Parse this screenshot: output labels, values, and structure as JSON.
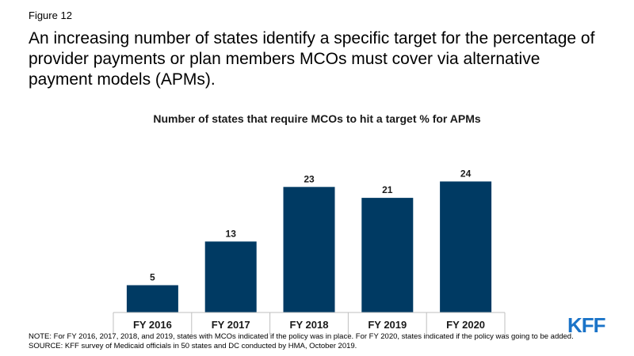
{
  "figure_label": "Figure 12",
  "headline": "An increasing number of states identify a specific target for the percentage of provider payments or plan members MCOs must cover via alternative payment models (APMs).",
  "chart_data": {
    "type": "bar",
    "title": "Number of states that require MCOs to hit a target % for APMs",
    "categories": [
      "FY 2016",
      "FY 2017",
      "FY 2018",
      "FY 2019",
      "FY 2020"
    ],
    "values": [
      5,
      13,
      23,
      21,
      24
    ],
    "ylim": [
      0,
      30
    ],
    "grid": false,
    "bar_color": "#003a63"
  },
  "footnotes": {
    "note": "NOTE: For FY 2016, 2017, 2018, and 2019, states with MCOs indicated if the policy was in place. For FY 2020, states indicated if the policy was going to be added.",
    "source": "SOURCE: KFF survey of Medicaid officials in 50 states and DC conducted by HMA, October 2019."
  },
  "logo": {
    "text": "KFF",
    "color": "#1a73c8"
  }
}
